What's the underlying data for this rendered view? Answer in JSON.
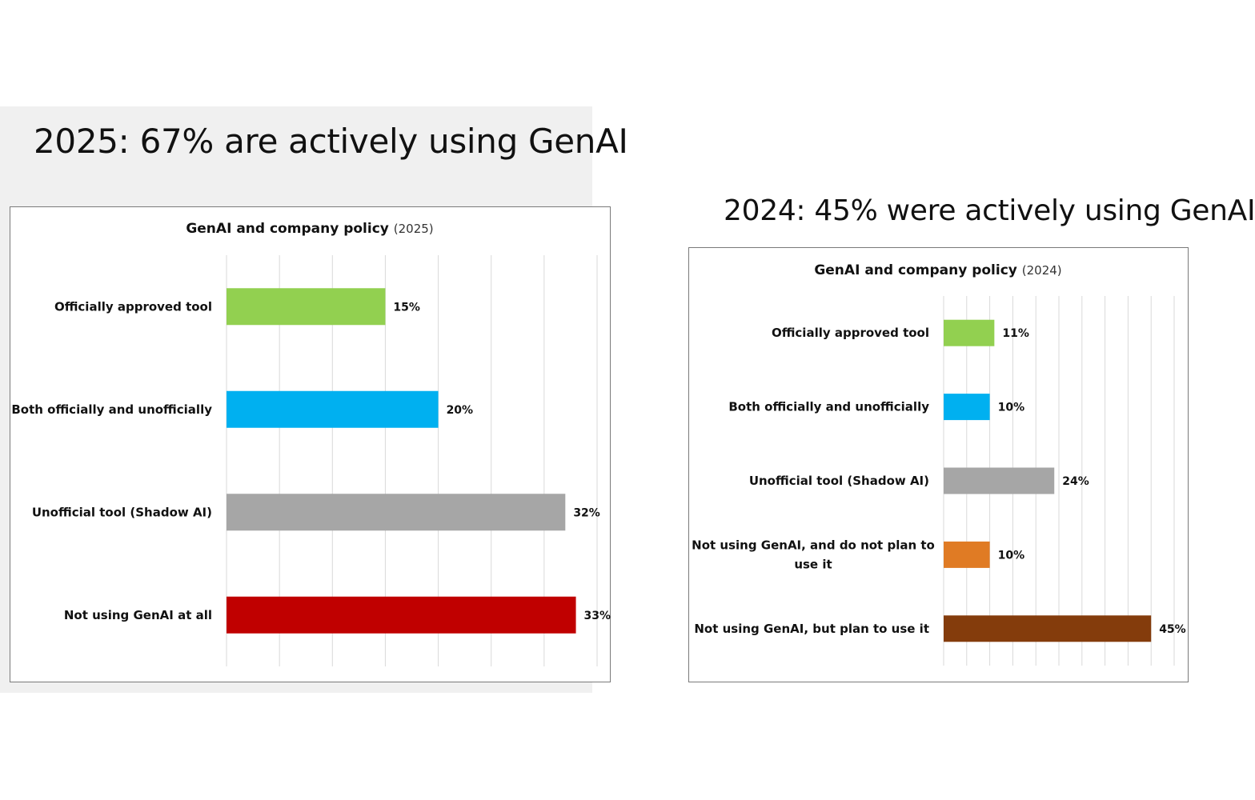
{
  "headlines": {
    "left": "2025: 67% are actively using GenAI",
    "right": "2024: 45% were actively using GenAI"
  },
  "chart_data": [
    {
      "type": "bar",
      "orientation": "horizontal",
      "title": "GenAI and company policy",
      "subtitle": "(2025)",
      "categories": [
        "Officially approved tool",
        "Both officially and unofficially",
        "Unofficial tool (Shadow AI)",
        "Not using GenAI at all"
      ],
      "values": [
        15,
        20,
        32,
        33
      ],
      "value_labels": [
        "15%",
        "20%",
        "32%",
        "33%"
      ],
      "colors": [
        "#92d050",
        "#00b0f0",
        "#a6a6a6",
        "#c00000"
      ],
      "xlim": [
        0,
        35
      ],
      "grid": true,
      "legend": "none"
    },
    {
      "type": "bar",
      "orientation": "horizontal",
      "title": "GenAI and company policy",
      "subtitle": "(2024)",
      "categories": [
        "Officially approved tool",
        "Both officially and unofficially",
        "Unofficial tool (Shadow AI)",
        "Not using GenAI, and do not plan to use it",
        "Not using GenAI, but plan to use it"
      ],
      "category_lines": [
        [
          "Officially approved tool"
        ],
        [
          "Both officially and unofficially"
        ],
        [
          "Unofficial tool (Shadow AI)"
        ],
        [
          "Not using GenAI, and do not plan to",
          "use it"
        ],
        [
          "Not using GenAI, but plan to use it"
        ]
      ],
      "values": [
        11,
        10,
        24,
        10,
        45
      ],
      "value_labels": [
        "11%",
        "10%",
        "24%",
        "10%",
        "45%"
      ],
      "colors": [
        "#92d050",
        "#00b0f0",
        "#a6a6a6",
        "#e07b24",
        "#843c0c"
      ],
      "xlim": [
        0,
        50
      ],
      "grid": true,
      "legend": "none"
    }
  ]
}
